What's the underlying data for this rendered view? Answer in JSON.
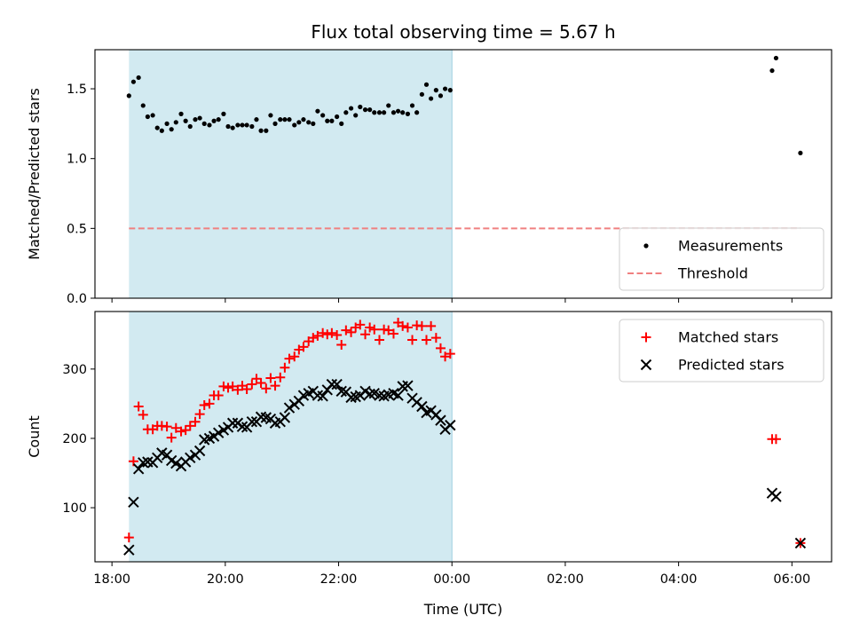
{
  "chart_data": [
    {
      "type": "scatter",
      "title": "Flux total observing time = 5.67 h",
      "xlabel": "",
      "ylabel": "Matched/Predicted stars",
      "xlim": [
        17.7,
        30.7
      ],
      "ylim": [
        0,
        1.78
      ],
      "yticks": [
        "0.0",
        "0.5",
        "1.0",
        "1.5"
      ],
      "ytick_values": [
        0,
        0.5,
        1.0,
        1.5
      ],
      "shaded_span": [
        18.3,
        24.0
      ],
      "shade_color": "#add8e6",
      "legend_position": "lower right",
      "series": [
        {
          "name": "Measurements",
          "marker": "dot",
          "color": "#000000",
          "x": [
            18.3,
            18.38,
            18.47,
            18.55,
            18.63,
            18.72,
            18.8,
            18.88,
            18.97,
            19.05,
            19.13,
            19.22,
            19.3,
            19.38,
            19.47,
            19.55,
            19.63,
            19.72,
            19.8,
            19.88,
            19.97,
            20.05,
            20.13,
            20.22,
            20.3,
            20.38,
            20.47,
            20.55,
            20.63,
            20.72,
            20.8,
            20.88,
            20.97,
            21.05,
            21.13,
            21.22,
            21.3,
            21.38,
            21.47,
            21.55,
            21.63,
            21.72,
            21.8,
            21.88,
            21.97,
            22.05,
            22.13,
            22.22,
            22.3,
            22.38,
            22.47,
            22.55,
            22.63,
            22.72,
            22.8,
            22.88,
            22.97,
            23.05,
            23.13,
            23.22,
            23.3,
            23.38,
            23.47,
            23.55,
            23.63,
            23.72,
            23.8,
            23.88,
            23.97,
            29.65,
            29.72,
            30.15
          ],
          "y": [
            1.45,
            1.55,
            1.58,
            1.38,
            1.3,
            1.31,
            1.22,
            1.2,
            1.25,
            1.21,
            1.26,
            1.32,
            1.27,
            1.23,
            1.28,
            1.29,
            1.25,
            1.24,
            1.27,
            1.28,
            1.32,
            1.23,
            1.22,
            1.24,
            1.24,
            1.24,
            1.23,
            1.28,
            1.2,
            1.2,
            1.31,
            1.25,
            1.28,
            1.28,
            1.28,
            1.24,
            1.26,
            1.28,
            1.26,
            1.25,
            1.34,
            1.31,
            1.27,
            1.27,
            1.3,
            1.25,
            1.33,
            1.36,
            1.31,
            1.37,
            1.35,
            1.35,
            1.33,
            1.33,
            1.33,
            1.38,
            1.33,
            1.34,
            1.33,
            1.32,
            1.38,
            1.33,
            1.46,
            1.53,
            1.43,
            1.49,
            1.45,
            1.5,
            1.49,
            1.63,
            1.72,
            1.04
          ]
        },
        {
          "name": "Threshold",
          "marker": "dashed-line",
          "color": "#f08080",
          "x": [
            18.3,
            30.15
          ],
          "y": [
            0.5,
            0.5
          ]
        }
      ]
    },
    {
      "type": "scatter",
      "xlabel": "Time (UTC)",
      "ylabel": "Count",
      "xlim": [
        17.7,
        30.7
      ],
      "ylim": [
        22,
        383
      ],
      "xticks": [
        "18:00",
        "20:00",
        "22:00",
        "00:00",
        "02:00",
        "04:00",
        "06:00"
      ],
      "xtick_values": [
        18,
        20,
        22,
        24,
        26,
        28,
        30
      ],
      "yticks": [
        "100",
        "200",
        "300"
      ],
      "ytick_values": [
        100,
        200,
        300
      ],
      "shaded_span": [
        18.3,
        24.0
      ],
      "shade_color": "#add8e6",
      "legend_position": "upper right",
      "series": [
        {
          "name": "Matched stars",
          "marker": "plus",
          "color": "#ff0000",
          "x": [
            18.3,
            18.38,
            18.47,
            18.55,
            18.63,
            18.72,
            18.8,
            18.88,
            18.97,
            19.05,
            19.13,
            19.22,
            19.3,
            19.38,
            19.47,
            19.55,
            19.63,
            19.72,
            19.8,
            19.88,
            19.97,
            20.05,
            20.13,
            20.22,
            20.3,
            20.38,
            20.47,
            20.55,
            20.63,
            20.72,
            20.8,
            20.88,
            20.97,
            21.05,
            21.13,
            21.22,
            21.3,
            21.38,
            21.47,
            21.55,
            21.63,
            21.72,
            21.8,
            21.88,
            21.97,
            22.05,
            22.13,
            22.22,
            22.3,
            22.38,
            22.47,
            22.55,
            22.63,
            22.72,
            22.8,
            22.88,
            22.97,
            23.05,
            23.13,
            23.22,
            23.3,
            23.38,
            23.47,
            23.55,
            23.63,
            23.72,
            23.8,
            23.88,
            23.97,
            29.65,
            29.72,
            30.15
          ],
          "y": [
            57,
            167,
            246,
            234,
            213,
            213,
            218,
            218,
            217,
            201,
            215,
            210,
            212,
            218,
            224,
            235,
            248,
            250,
            262,
            262,
            275,
            273,
            275,
            270,
            276,
            271,
            278,
            286,
            280,
            272,
            287,
            276,
            288,
            302,
            315,
            318,
            328,
            332,
            340,
            345,
            348,
            352,
            350,
            352,
            349,
            335,
            356,
            353,
            360,
            364,
            350,
            360,
            357,
            342,
            357,
            356,
            351,
            367,
            362,
            360,
            342,
            363,
            362,
            342,
            362,
            345,
            330,
            318,
            322,
            199,
            199,
            49
          ]
        },
        {
          "name": "Predicted stars",
          "marker": "x",
          "color": "#000000",
          "x": [
            18.3,
            18.38,
            18.47,
            18.55,
            18.63,
            18.72,
            18.8,
            18.88,
            18.97,
            19.05,
            19.13,
            19.22,
            19.3,
            19.38,
            19.47,
            19.55,
            19.63,
            19.72,
            19.8,
            19.88,
            19.97,
            20.05,
            20.13,
            20.22,
            20.3,
            20.38,
            20.47,
            20.55,
            20.63,
            20.72,
            20.8,
            20.88,
            20.97,
            21.05,
            21.13,
            21.22,
            21.3,
            21.38,
            21.47,
            21.55,
            21.63,
            21.72,
            21.8,
            21.88,
            21.97,
            22.05,
            22.13,
            22.22,
            22.3,
            22.38,
            22.47,
            22.55,
            22.63,
            22.72,
            22.8,
            22.88,
            22.97,
            23.05,
            23.13,
            23.22,
            23.3,
            23.38,
            23.47,
            23.55,
            23.63,
            23.72,
            23.8,
            23.88,
            23.97,
            29.65,
            29.72,
            30.15
          ],
          "y": [
            39,
            108,
            156,
            165,
            166,
            165,
            172,
            179,
            176,
            168,
            164,
            160,
            166,
            172,
            176,
            182,
            198,
            200,
            203,
            208,
            212,
            216,
            222,
            222,
            217,
            216,
            224,
            224,
            231,
            230,
            228,
            222,
            224,
            230,
            244,
            249,
            254,
            262,
            265,
            268,
            262,
            261,
            270,
            278,
            278,
            268,
            267,
            259,
            260,
            262,
            268,
            264,
            265,
            262,
            261,
            263,
            265,
            262,
            275,
            276,
            258,
            252,
            246,
            237,
            240,
            234,
            226,
            213,
            219,
            121,
            116,
            49
          ]
        }
      ]
    }
  ]
}
